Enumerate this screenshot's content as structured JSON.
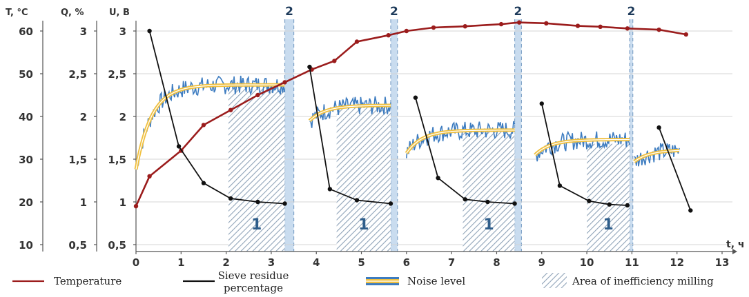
{
  "chart_data": {
    "type": "line",
    "axes": {
      "temperature": {
        "title": "T, °C",
        "ticks": [
          "10",
          "20",
          "30",
          "40",
          "50",
          "60"
        ],
        "range": [
          5,
          65
        ]
      },
      "sieve": {
        "title": "Q, %",
        "ticks": [
          "0,5",
          "1",
          "1,5",
          "2",
          "2,5",
          "3"
        ],
        "range": [
          0.25,
          3.25
        ]
      },
      "voltage": {
        "title": "U, B",
        "ticks": [
          "0,5",
          "1",
          "1,5",
          "2",
          "2,5",
          "3"
        ],
        "range": [
          0.25,
          3.25
        ]
      },
      "x": {
        "title": "t, ч",
        "ticks": [
          "0",
          "1",
          "2",
          "3",
          "4",
          "5",
          "6",
          "7",
          "8",
          "9",
          "10",
          "11",
          "12",
          "13"
        ],
        "range": [
          0,
          13.5
        ]
      }
    },
    "grid": true,
    "series": [
      {
        "name": "Temperature",
        "color": "#9b1c1c",
        "axis": "temperature",
        "points": [
          [
            0,
            19
          ],
          [
            0.3,
            26
          ],
          [
            1,
            32
          ],
          [
            1.5,
            38
          ],
          [
            2.1,
            41.5
          ],
          [
            2.7,
            45
          ],
          [
            3.3,
            48
          ],
          [
            3.9,
            51
          ],
          [
            4.4,
            53
          ],
          [
            4.9,
            57.5
          ],
          [
            5.6,
            59
          ],
          [
            6,
            60
          ],
          [
            6.6,
            60.8
          ],
          [
            7.3,
            61.1
          ],
          [
            8.1,
            61.6
          ],
          [
            8.5,
            62
          ],
          [
            9.1,
            61.8
          ],
          [
            9.8,
            61.2
          ],
          [
            10.3,
            61
          ],
          [
            10.9,
            60.6
          ],
          [
            11.6,
            60.3
          ],
          [
            12.2,
            59.2
          ]
        ]
      },
      {
        "name": "Sieve residue percentage",
        "color": "#111111",
        "axis": "sieve",
        "segments": [
          [
            [
              0.3,
              3
            ],
            [
              0.95,
              1.65
            ],
            [
              1.5,
              1.22
            ],
            [
              2.1,
              1.04
            ],
            [
              2.7,
              1
            ],
            [
              3.3,
              0.98
            ]
          ],
          [
            [
              3.85,
              2.58
            ],
            [
              4.3,
              1.15
            ],
            [
              4.9,
              1.02
            ],
            [
              5.65,
              0.98
            ]
          ],
          [
            [
              6.2,
              2.22
            ],
            [
              6.7,
              1.28
            ],
            [
              7.3,
              1.03
            ],
            [
              7.8,
              1
            ],
            [
              8.4,
              0.98
            ]
          ],
          [
            [
              9,
              2.15
            ],
            [
              9.4,
              1.19
            ],
            [
              10.05,
              1.01
            ],
            [
              10.5,
              0.97
            ],
            [
              10.9,
              0.96
            ]
          ],
          [
            [
              11.6,
              1.87
            ],
            [
              12.3,
              0.9
            ]
          ]
        ]
      },
      {
        "name": "Noise level",
        "color": "#3d7cc0",
        "axis": "voltage",
        "segments": [
          {
            "start": 0,
            "end": 3.3,
            "from": 1.38,
            "plateau": 2.37
          },
          {
            "start": 3.85,
            "end": 5.65,
            "from": 1.95,
            "plateau": 2.13
          },
          {
            "start": 6,
            "end": 8.4,
            "from": 1.57,
            "plateau": 1.84
          },
          {
            "start": 8.85,
            "end": 10.95,
            "from": 1.55,
            "plateau": 1.73
          },
          {
            "start": 11.05,
            "end": 12.05,
            "from": 1.47,
            "plateau": 1.61
          }
        ]
      }
    ],
    "regions": {
      "inefficiency": [
        {
          "label": "1",
          "x0": 2.05,
          "x1": 3.3,
          "top": 2.37
        },
        {
          "label": "1",
          "x0": 4.45,
          "x1": 5.65,
          "top": 2.12
        },
        {
          "label": "1",
          "x0": 7.25,
          "x1": 8.4,
          "top": 1.82
        },
        {
          "label": "1",
          "x0": 10,
          "x1": 10.95,
          "top": 1.68
        }
      ],
      "bands": [
        {
          "label": "2",
          "x0": 3.3,
          "x1": 3.5
        },
        {
          "label": "2",
          "x0": 5.65,
          "x1": 5.8
        },
        {
          "label": "2",
          "x0": 8.4,
          "x1": 8.55
        },
        {
          "label": "2",
          "x0": 10.95,
          "x1": 11.02
        }
      ]
    },
    "legend": {
      "position": "bottom",
      "items": [
        {
          "key": "temperature",
          "label_lines": [
            "Temperature"
          ],
          "color": "#9b1c1c"
        },
        {
          "key": "sieve",
          "label_lines": [
            "Sieve residue",
            "percentage"
          ],
          "color": "#111111"
        },
        {
          "key": "noise",
          "label_lines": [
            "Noise level"
          ],
          "color": "#3d7cc0"
        },
        {
          "key": "area",
          "label_lines": [
            "Area of inefficiency milling"
          ],
          "color": "#8fa3b8"
        }
      ]
    }
  }
}
